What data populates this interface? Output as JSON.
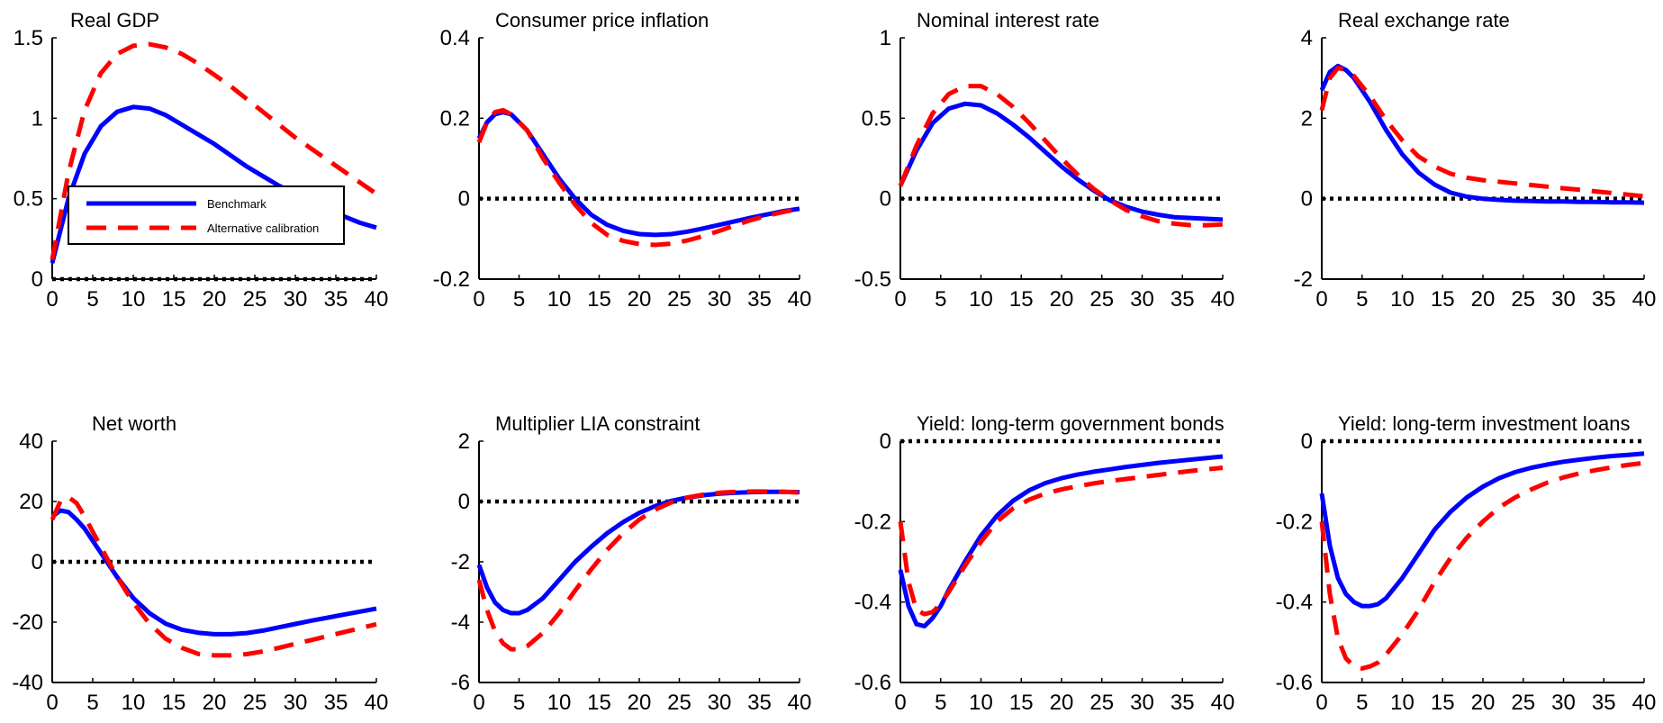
{
  "figure": {
    "series_styles": {
      "Benchmark": {
        "color": "#0000ff",
        "dash": "solid"
      },
      "Alternative calibration": {
        "color": "#ff0000",
        "dash": "dashed"
      }
    },
    "zero_line_color": "#000000",
    "legend": {
      "panel": 0,
      "placement": "inside-left",
      "entries": [
        "Benchmark",
        "Alternative calibration"
      ]
    }
  },
  "chart_data": [
    {
      "type": "line",
      "title": "Real GDP",
      "xlabel": "",
      "ylabel": "",
      "xlim": [
        0,
        40
      ],
      "ylim": [
        0,
        1.5
      ],
      "xticks": [
        "0",
        "5",
        "10",
        "15",
        "20",
        "25",
        "30",
        "35",
        "40"
      ],
      "yticks": [
        "0",
        "0.5",
        "1",
        "1.5"
      ],
      "x": [
        0,
        2,
        4,
        6,
        8,
        10,
        12,
        14,
        16,
        18,
        20,
        22,
        24,
        26,
        28,
        30,
        32,
        34,
        36,
        38,
        40
      ],
      "series": [
        {
          "name": "Benchmark",
          "values": [
            0.1,
            0.5,
            0.78,
            0.95,
            1.04,
            1.07,
            1.06,
            1.02,
            0.96,
            0.9,
            0.84,
            0.77,
            0.7,
            0.64,
            0.58,
            0.53,
            0.48,
            0.43,
            0.39,
            0.35,
            0.32
          ]
        },
        {
          "name": "Alternative calibration",
          "values": [
            0.12,
            0.66,
            1.05,
            1.28,
            1.4,
            1.45,
            1.46,
            1.44,
            1.4,
            1.34,
            1.27,
            1.2,
            1.12,
            1.04,
            0.96,
            0.88,
            0.81,
            0.74,
            0.67,
            0.6,
            0.53
          ]
        }
      ]
    },
    {
      "type": "line",
      "title": "Consumer price inflation",
      "xlabel": "",
      "ylabel": "",
      "xlim": [
        0,
        40
      ],
      "ylim": [
        -0.2,
        0.4
      ],
      "xticks": [
        "0",
        "5",
        "10",
        "15",
        "20",
        "25",
        "30",
        "35",
        "40"
      ],
      "yticks": [
        "-0.2",
        "0",
        "0.2",
        "0.4"
      ],
      "x": [
        0,
        1,
        2,
        3,
        4,
        6,
        8,
        10,
        12,
        14,
        16,
        18,
        20,
        22,
        24,
        26,
        28,
        30,
        32,
        34,
        36,
        38,
        40
      ],
      "series": [
        {
          "name": "Benchmark",
          "values": [
            0.15,
            0.19,
            0.21,
            0.215,
            0.21,
            0.17,
            0.11,
            0.05,
            0.0,
            -0.04,
            -0.065,
            -0.08,
            -0.088,
            -0.09,
            -0.088,
            -0.082,
            -0.074,
            -0.065,
            -0.056,
            -0.047,
            -0.039,
            -0.031,
            -0.025
          ]
        },
        {
          "name": "Alternative calibration",
          "values": [
            0.14,
            0.19,
            0.215,
            0.22,
            0.21,
            0.17,
            0.1,
            0.04,
            -0.015,
            -0.06,
            -0.09,
            -0.105,
            -0.113,
            -0.115,
            -0.112,
            -0.104,
            -0.093,
            -0.08,
            -0.066,
            -0.053,
            -0.042,
            -0.033,
            -0.025
          ]
        }
      ]
    },
    {
      "type": "line",
      "title": "Nominal interest rate",
      "xlabel": "",
      "ylabel": "",
      "xlim": [
        0,
        40
      ],
      "ylim": [
        -0.5,
        1
      ],
      "xticks": [
        "0",
        "5",
        "10",
        "15",
        "20",
        "25",
        "30",
        "35",
        "40"
      ],
      "yticks": [
        "-0.5",
        "0",
        "0.5",
        "1"
      ],
      "x": [
        0,
        2,
        4,
        6,
        8,
        10,
        12,
        14,
        16,
        18,
        20,
        22,
        24,
        26,
        28,
        30,
        32,
        34,
        36,
        38,
        40
      ],
      "series": [
        {
          "name": "Benchmark",
          "values": [
            0.08,
            0.3,
            0.47,
            0.56,
            0.59,
            0.58,
            0.53,
            0.46,
            0.38,
            0.29,
            0.2,
            0.12,
            0.05,
            -0.01,
            -0.05,
            -0.08,
            -0.1,
            -0.115,
            -0.12,
            -0.125,
            -0.13
          ]
        },
        {
          "name": "Alternative calibration",
          "values": [
            0.08,
            0.33,
            0.53,
            0.65,
            0.7,
            0.7,
            0.65,
            0.57,
            0.47,
            0.36,
            0.25,
            0.15,
            0.06,
            -0.01,
            -0.07,
            -0.11,
            -0.14,
            -0.155,
            -0.165,
            -0.165,
            -0.16
          ]
        }
      ]
    },
    {
      "type": "line",
      "title": "Real exchange rate",
      "xlabel": "",
      "ylabel": "",
      "xlim": [
        0,
        40
      ],
      "ylim": [
        -2,
        4
      ],
      "xticks": [
        "0",
        "5",
        "10",
        "15",
        "20",
        "25",
        "30",
        "35",
        "40"
      ],
      "yticks": [
        "-2",
        "0",
        "2",
        "4"
      ],
      "x": [
        0,
        1,
        2,
        3,
        4,
        6,
        8,
        10,
        12,
        14,
        16,
        18,
        20,
        22,
        24,
        26,
        28,
        30,
        32,
        34,
        36,
        38,
        40
      ],
      "series": [
        {
          "name": "Benchmark",
          "values": [
            2.7,
            3.15,
            3.3,
            3.2,
            3.0,
            2.4,
            1.7,
            1.1,
            0.65,
            0.35,
            0.15,
            0.05,
            0.0,
            -0.03,
            -0.05,
            -0.06,
            -0.07,
            -0.07,
            -0.08,
            -0.08,
            -0.09,
            -0.09,
            -0.1
          ]
        },
        {
          "name": "Alternative calibration",
          "values": [
            2.2,
            3.0,
            3.25,
            3.2,
            3.05,
            2.55,
            1.95,
            1.45,
            1.05,
            0.8,
            0.62,
            0.52,
            0.46,
            0.42,
            0.38,
            0.34,
            0.3,
            0.26,
            0.22,
            0.18,
            0.14,
            0.1,
            0.06
          ]
        }
      ]
    },
    {
      "type": "line",
      "title": "Net worth",
      "xlabel": "",
      "ylabel": "",
      "xlim": [
        0,
        40
      ],
      "ylim": [
        -40,
        40
      ],
      "xticks": [
        "0",
        "5",
        "10",
        "15",
        "20",
        "25",
        "30",
        "35",
        "40"
      ],
      "yticks": [
        "-40",
        "-20",
        "0",
        "20",
        "40"
      ],
      "x": [
        0,
        1,
        2,
        3,
        4,
        6,
        8,
        10,
        12,
        14,
        16,
        18,
        20,
        22,
        24,
        26,
        28,
        30,
        32,
        34,
        36,
        38,
        40
      ],
      "series": [
        {
          "name": "Benchmark",
          "values": [
            15,
            17,
            16.5,
            14,
            11,
            3,
            -5,
            -12,
            -17,
            -20.5,
            -22.5,
            -23.5,
            -24,
            -24,
            -23.6,
            -22.8,
            -21.7,
            -20.6,
            -19.5,
            -18.5,
            -17.5,
            -16.5,
            -15.5
          ]
        },
        {
          "name": "Alternative calibration",
          "values": [
            14,
            20,
            21.5,
            19.5,
            15,
            5,
            -5,
            -13.5,
            -20.5,
            -25.5,
            -28.5,
            -30.5,
            -31,
            -31,
            -30.6,
            -29.7,
            -28.5,
            -27.2,
            -25.9,
            -24.6,
            -23.3,
            -22,
            -20.7
          ]
        }
      ]
    },
    {
      "type": "line",
      "title": "Multiplier LIA constraint",
      "xlabel": "",
      "ylabel": "",
      "xlim": [
        0,
        40
      ],
      "ylim": [
        -6,
        2
      ],
      "xticks": [
        "0",
        "5",
        "10",
        "15",
        "20",
        "25",
        "30",
        "35",
        "40"
      ],
      "yticks": [
        "-6",
        "-4",
        "-2",
        "0",
        "2"
      ],
      "x": [
        0,
        1,
        2,
        3,
        4,
        5,
        6,
        8,
        10,
        12,
        14,
        16,
        18,
        20,
        22,
        24,
        26,
        28,
        30,
        32,
        34,
        36,
        38,
        40
      ],
      "series": [
        {
          "name": "Benchmark",
          "values": [
            -2.1,
            -2.85,
            -3.35,
            -3.6,
            -3.7,
            -3.7,
            -3.6,
            -3.2,
            -2.6,
            -2.0,
            -1.5,
            -1.05,
            -0.68,
            -0.38,
            -0.15,
            0.02,
            0.13,
            0.21,
            0.26,
            0.29,
            0.31,
            0.32,
            0.32,
            0.31
          ]
        },
        {
          "name": "Alternative calibration",
          "values": [
            -2.6,
            -3.6,
            -4.3,
            -4.7,
            -4.9,
            -4.9,
            -4.8,
            -4.35,
            -3.7,
            -2.95,
            -2.25,
            -1.6,
            -1.05,
            -0.6,
            -0.27,
            -0.03,
            0.13,
            0.23,
            0.29,
            0.32,
            0.33,
            0.33,
            0.32,
            0.3
          ]
        }
      ]
    },
    {
      "type": "line",
      "title": "Yield: long-term government bonds",
      "xlabel": "",
      "ylabel": "",
      "xlim": [
        0,
        40
      ],
      "ylim": [
        -0.6,
        0
      ],
      "xticks": [
        "0",
        "5",
        "10",
        "15",
        "20",
        "25",
        "30",
        "35",
        "40"
      ],
      "yticks": [
        "-0.6",
        "-0.4",
        "-0.2",
        "0"
      ],
      "x": [
        0,
        1,
        2,
        3,
        4,
        5,
        6,
        8,
        10,
        12,
        14,
        16,
        18,
        20,
        22,
        24,
        26,
        28,
        30,
        32,
        34,
        36,
        38,
        40
      ],
      "series": [
        {
          "name": "Benchmark",
          "values": [
            -0.32,
            -0.41,
            -0.455,
            -0.46,
            -0.44,
            -0.41,
            -0.37,
            -0.3,
            -0.235,
            -0.185,
            -0.148,
            -0.122,
            -0.104,
            -0.092,
            -0.083,
            -0.076,
            -0.07,
            -0.064,
            -0.059,
            -0.054,
            -0.05,
            -0.046,
            -0.042,
            -0.038
          ]
        },
        {
          "name": "Alternative calibration",
          "values": [
            -0.2,
            -0.35,
            -0.42,
            -0.43,
            -0.425,
            -0.405,
            -0.375,
            -0.31,
            -0.25,
            -0.2,
            -0.167,
            -0.145,
            -0.13,
            -0.12,
            -0.112,
            -0.105,
            -0.099,
            -0.094,
            -0.089,
            -0.084,
            -0.079,
            -0.074,
            -0.07,
            -0.066
          ]
        }
      ]
    },
    {
      "type": "line",
      "title": "Yield: long-term investment loans",
      "xlabel": "",
      "ylabel": "",
      "xlim": [
        0,
        40
      ],
      "ylim": [
        -0.6,
        0
      ],
      "xticks": [
        "0",
        "5",
        "10",
        "15",
        "20",
        "25",
        "30",
        "35",
        "40"
      ],
      "yticks": [
        "-0.6",
        "-0.4",
        "-0.2",
        "0"
      ],
      "x": [
        0,
        1,
        2,
        3,
        4,
        5,
        6,
        7,
        8,
        10,
        12,
        14,
        16,
        18,
        20,
        22,
        24,
        26,
        28,
        30,
        32,
        34,
        36,
        38,
        40
      ],
      "series": [
        {
          "name": "Benchmark",
          "values": [
            -0.13,
            -0.26,
            -0.34,
            -0.38,
            -0.4,
            -0.41,
            -0.41,
            -0.405,
            -0.39,
            -0.34,
            -0.28,
            -0.22,
            -0.175,
            -0.14,
            -0.113,
            -0.092,
            -0.077,
            -0.066,
            -0.058,
            -0.051,
            -0.046,
            -0.041,
            -0.037,
            -0.034,
            -0.031
          ]
        },
        {
          "name": "Alternative calibration",
          "values": [
            -0.2,
            -0.38,
            -0.49,
            -0.54,
            -0.56,
            -0.565,
            -0.56,
            -0.55,
            -0.53,
            -0.48,
            -0.42,
            -0.35,
            -0.29,
            -0.24,
            -0.2,
            -0.165,
            -0.14,
            -0.12,
            -0.103,
            -0.09,
            -0.08,
            -0.072,
            -0.065,
            -0.059,
            -0.054
          ]
        }
      ]
    }
  ]
}
